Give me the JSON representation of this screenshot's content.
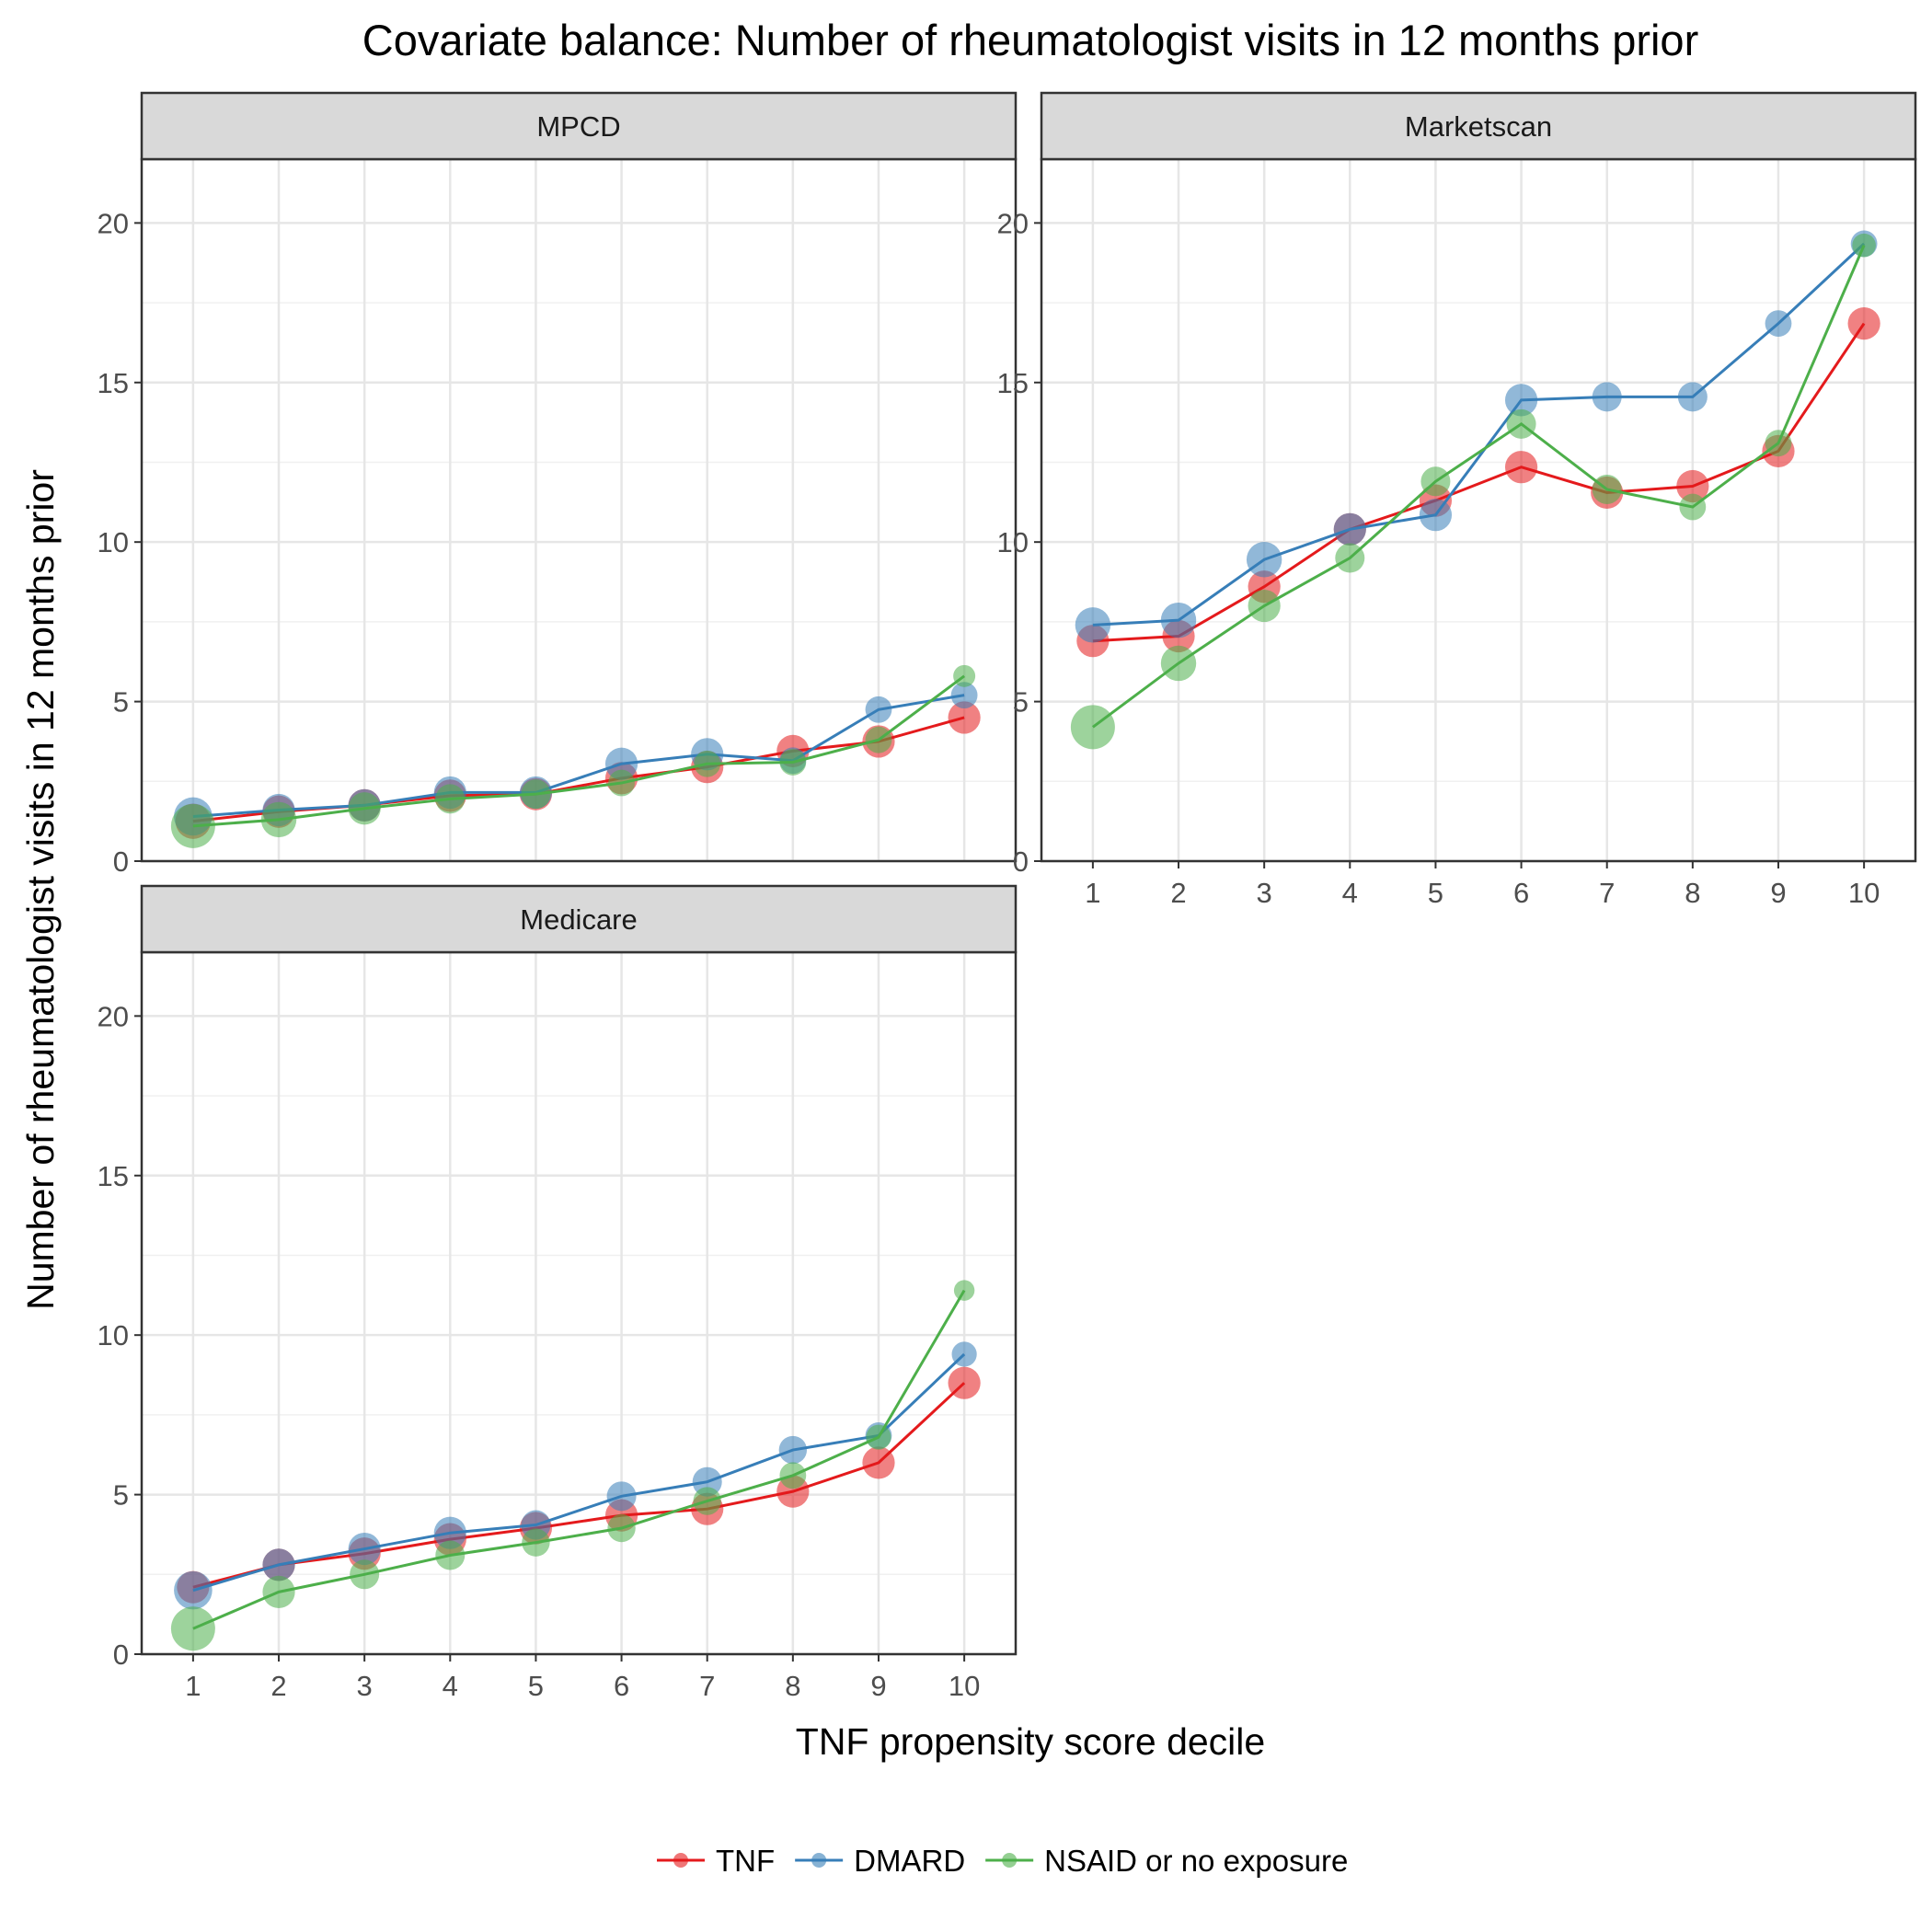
{
  "chart_data": {
    "type": "line",
    "title": "Covariate balance: Number of rheumatologist visits in 12 months prior",
    "xlabel": "TNF propensity score decile",
    "ylabel": "Number of rheumatologist visits in 12 months prior",
    "x": [
      1,
      2,
      3,
      4,
      5,
      6,
      7,
      8,
      9,
      10
    ],
    "ylim": [
      0,
      22
    ],
    "yticks": [
      0,
      5,
      10,
      15,
      20
    ],
    "grid": true,
    "legend_position": "bottom",
    "series_meta": [
      {
        "name": "TNF",
        "color": "#e41a1c"
      },
      {
        "name": "DMARD",
        "color": "#377eb8"
      },
      {
        "name": "NSAID or no exposure",
        "color": "#4daf4a"
      }
    ],
    "panels": [
      {
        "label": "MPCD",
        "series": [
          {
            "name": "TNF",
            "values": [
              1.25,
              1.55,
              1.75,
              2.05,
              2.1,
              2.6,
              2.95,
              3.45,
              3.75,
              4.5
            ],
            "sizes": [
              0.7,
              0.6,
              0.6,
              0.6,
              0.6,
              0.6,
              0.6,
              0.6,
              0.6,
              0.6
            ]
          },
          {
            "name": "DMARD",
            "values": [
              1.4,
              1.6,
              1.75,
              2.15,
              2.15,
              3.05,
              3.35,
              3.15,
              4.75,
              5.2
            ],
            "sizes": [
              0.8,
              0.6,
              0.6,
              0.6,
              0.6,
              0.6,
              0.6,
              0.4,
              0.4,
              0.4
            ]
          },
          {
            "name": "NSAID or no exposure",
            "values": [
              1.1,
              1.3,
              1.65,
              1.95,
              2.1,
              2.45,
              3.05,
              3.1,
              3.8,
              5.8
            ],
            "sizes": [
              1.0,
              0.7,
              0.6,
              0.5,
              0.5,
              0.4,
              0.4,
              0.4,
              0.4,
              0.25
            ]
          }
        ]
      },
      {
        "label": "Marketscan",
        "series": [
          {
            "name": "TNF",
            "values": [
              6.9,
              7.05,
              8.6,
              10.4,
              11.3,
              12.35,
              11.55,
              11.75,
              12.85,
              16.85
            ],
            "sizes": [
              0.6,
              0.6,
              0.6,
              0.6,
              0.6,
              0.6,
              0.6,
              0.6,
              0.6,
              0.6
            ]
          },
          {
            "name": "DMARD",
            "values": [
              7.4,
              7.55,
              9.45,
              10.4,
              10.85,
              14.45,
              14.55,
              14.55,
              16.85,
              19.35
            ],
            "sizes": [
              0.7,
              0.7,
              0.7,
              0.6,
              0.6,
              0.6,
              0.5,
              0.5,
              0.4,
              0.4
            ]
          },
          {
            "name": "NSAID or no exposure",
            "values": [
              4.2,
              6.2,
              8.0,
              9.5,
              11.9,
              13.7,
              11.65,
              11.1,
              13.1,
              19.3
            ],
            "sizes": [
              1.0,
              0.7,
              0.6,
              0.5,
              0.5,
              0.5,
              0.5,
              0.4,
              0.4,
              0.3
            ]
          }
        ]
      },
      {
        "label": "Medicare",
        "series": [
          {
            "name": "TNF",
            "values": [
              2.1,
              2.8,
              3.15,
              3.6,
              3.95,
              4.35,
              4.55,
              5.1,
              6.0,
              8.5
            ],
            "sizes": [
              0.6,
              0.6,
              0.6,
              0.6,
              0.6,
              0.6,
              0.6,
              0.6,
              0.6,
              0.6
            ]
          },
          {
            "name": "DMARD",
            "values": [
              2.0,
              2.8,
              3.3,
              3.8,
              4.05,
              4.95,
              5.4,
              6.4,
              6.85,
              9.4
            ],
            "sizes": [
              0.8,
              0.6,
              0.6,
              0.6,
              0.5,
              0.5,
              0.5,
              0.45,
              0.4,
              0.35
            ]
          },
          {
            "name": "NSAID or no exposure",
            "values": [
              0.8,
              1.95,
              2.5,
              3.1,
              3.5,
              3.95,
              4.8,
              5.6,
              6.8,
              11.4
            ],
            "sizes": [
              1.0,
              0.6,
              0.5,
              0.5,
              0.45,
              0.45,
              0.45,
              0.4,
              0.35,
              0.2
            ]
          }
        ]
      }
    ]
  }
}
